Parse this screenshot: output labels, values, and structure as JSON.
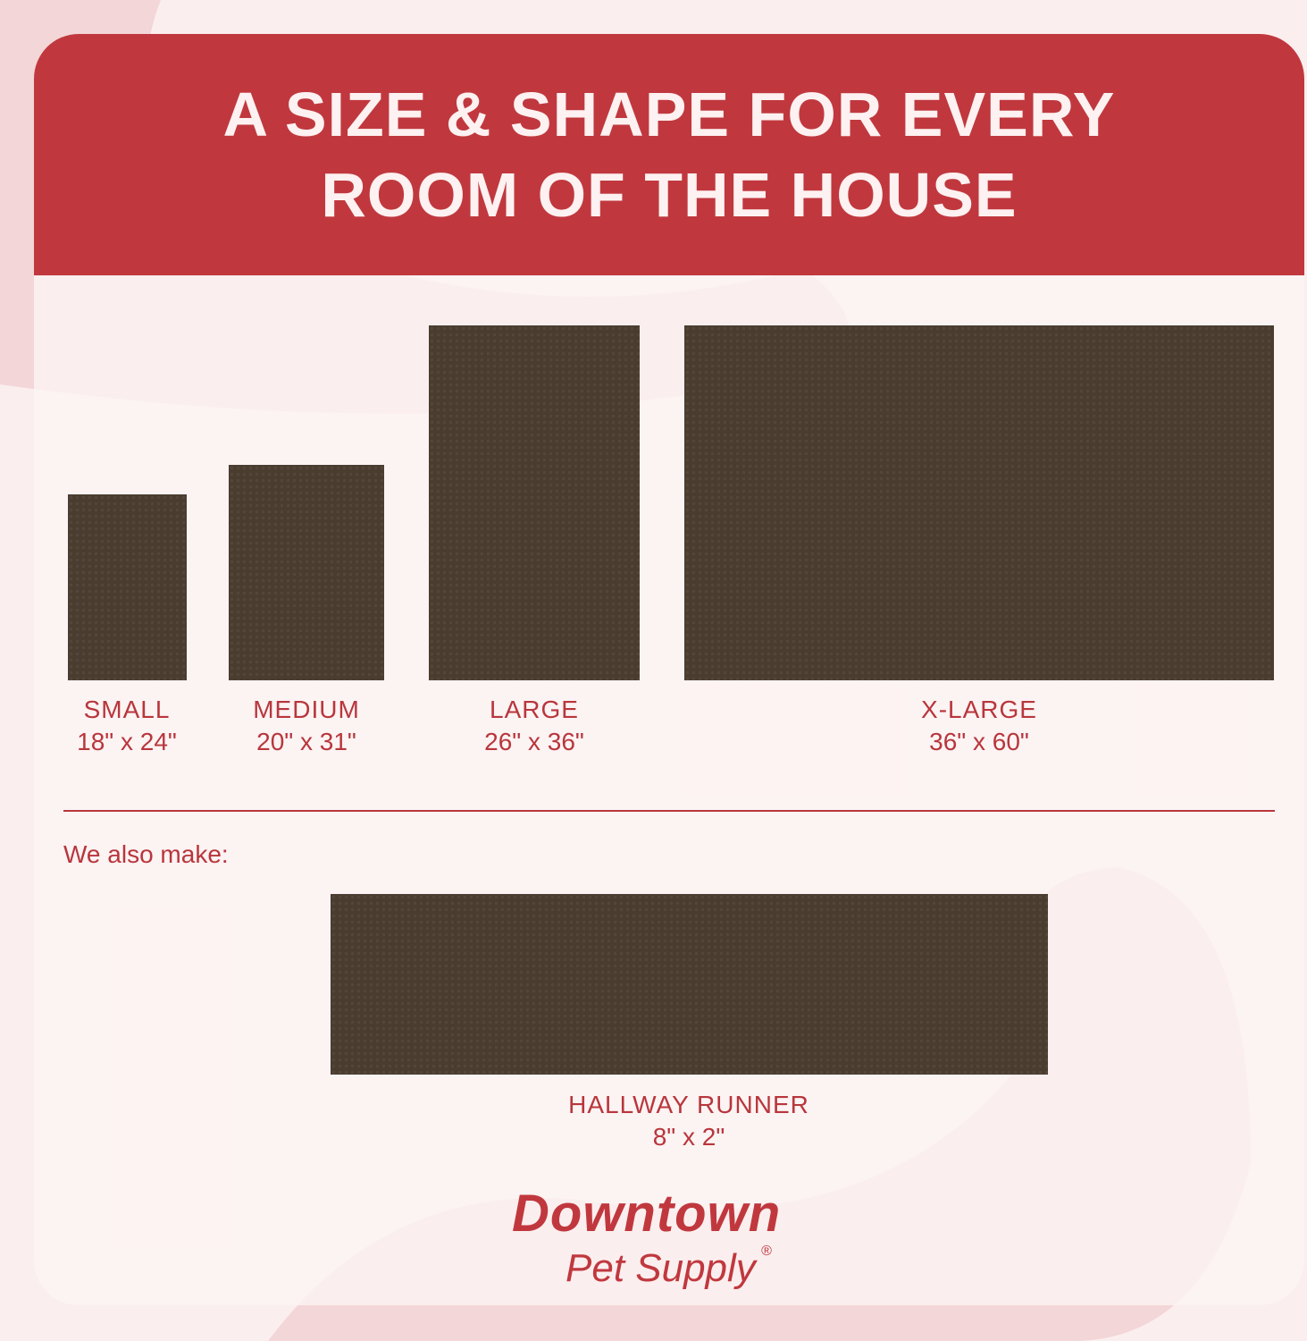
{
  "header": {
    "title": "A SIZE & SHAPE FOR EVERY ROOM OF THE HOUSE"
  },
  "colors": {
    "brand_red": "#c0383e",
    "mat": "#4a3d30",
    "background": "#fbeeee"
  },
  "sizes": [
    {
      "name": "SMALL",
      "dims": "18\" x 24\""
    },
    {
      "name": "MEDIUM",
      "dims": "20\" x 31\""
    },
    {
      "name": "LARGE",
      "dims": "26\" x 36\""
    },
    {
      "name": "X-LARGE",
      "dims": "36\" x 60\""
    }
  ],
  "also": {
    "label": "We also make:",
    "name": "HALLWAY RUNNER",
    "dims": "8\" x 2\""
  },
  "logo": {
    "line1": "Downtown",
    "line2": "Pet Supply",
    "mark": "®"
  }
}
